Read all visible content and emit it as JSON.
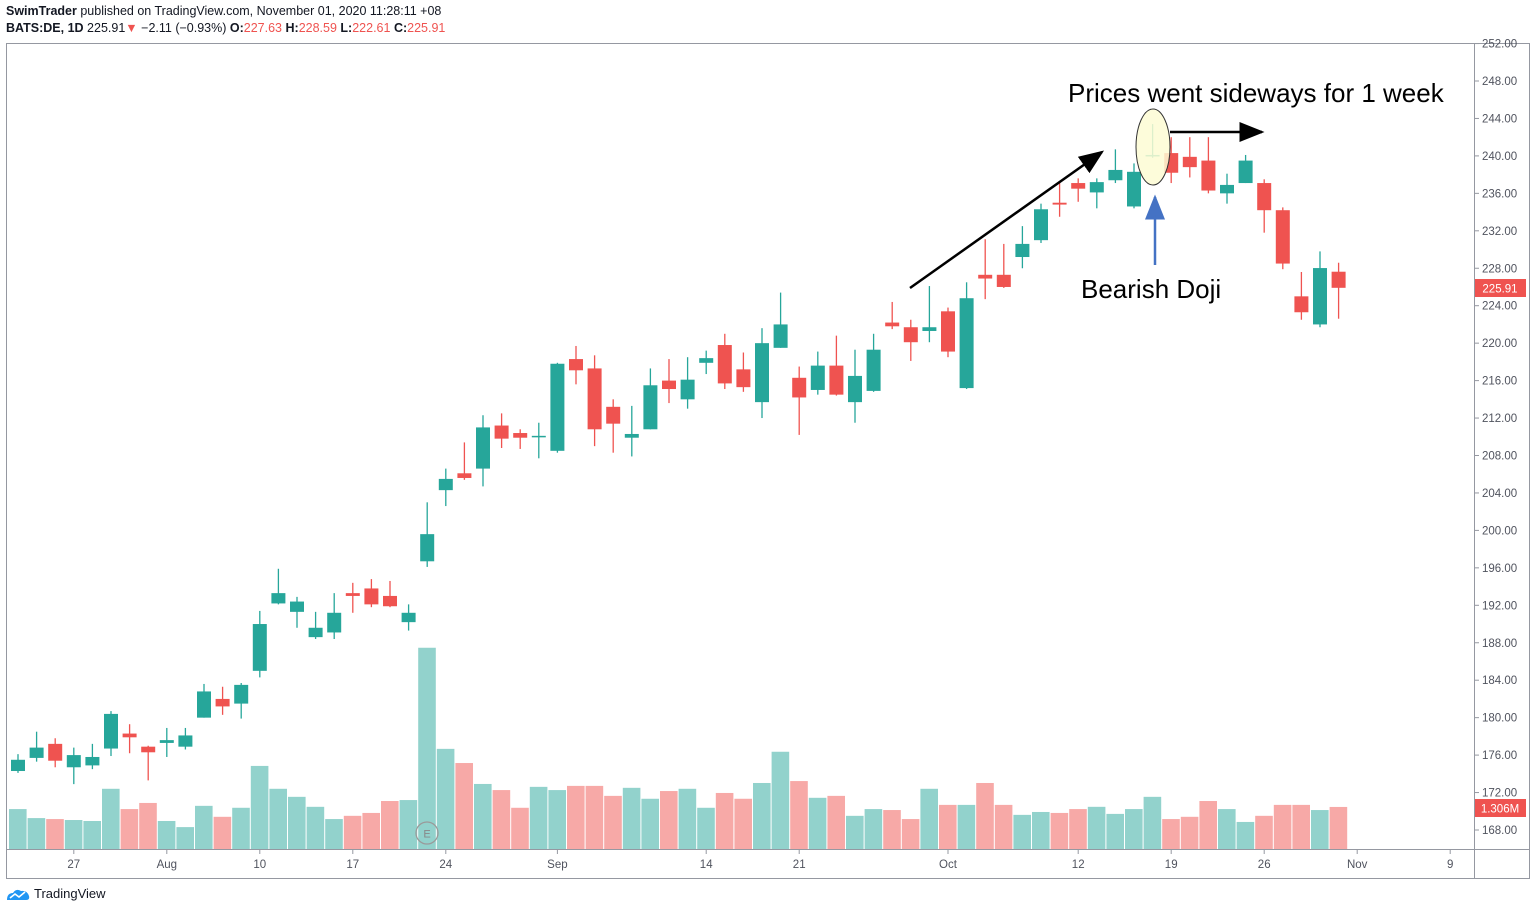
{
  "header": {
    "publisher": "SwimTrader",
    "published_text": "published on TradingView.com, November 01, 2020 11:28:11 +08",
    "symbol": "BATS:DE, 1D",
    "last": "225.91",
    "change": "−2.11 (−0.93%)",
    "o_label": "O:",
    "o": "227.63",
    "h_label": "H:",
    "h": "228.59",
    "l_label": "L:",
    "l": "222.61",
    "c_label": "C:",
    "c": "225.91"
  },
  "footer": {
    "brand": "TradingView"
  },
  "colors": {
    "up": "#26a69a",
    "down": "#ef5350",
    "up_volume": "#92d2cc",
    "down_volume": "#f7a9a7",
    "annotation_fill": "#fdfbd3",
    "annotation_arrow": "#4472c4"
  },
  "chart_data": {
    "type": "candlestick",
    "ylim": [
      166,
      252.5
    ],
    "y_ticks": [
      "252.00",
      "248.00",
      "244.00",
      "240.00",
      "236.00",
      "232.00",
      "228.00",
      "224.00",
      "220.00",
      "216.00",
      "212.00",
      "208.00",
      "204.00",
      "200.00",
      "196.00",
      "192.00",
      "188.00",
      "184.00",
      "180.00",
      "176.00",
      "172.00",
      "168.00"
    ],
    "x_ticks": [
      {
        "label": "27",
        "date": "2020-07-27"
      },
      {
        "label": "Aug",
        "date": "2020-08-03"
      },
      {
        "label": "10",
        "date": "2020-08-10"
      },
      {
        "label": "17",
        "date": "2020-08-17"
      },
      {
        "label": "24",
        "date": "2020-08-24"
      },
      {
        "label": "Sep",
        "date": "2020-09-01"
      },
      {
        "label": "14",
        "date": "2020-09-14"
      },
      {
        "label": "21",
        "date": "2020-09-21"
      },
      {
        "label": "Oct",
        "date": "2020-10-01"
      },
      {
        "label": "12",
        "date": "2020-10-12"
      },
      {
        "label": "19",
        "date": "2020-10-19"
      },
      {
        "label": "26",
        "date": "2020-10-26"
      },
      {
        "label": "Nov",
        "date": "2020-11-02"
      },
      {
        "label": "9",
        "date": "2020-11-09"
      }
    ],
    "last_price_label": "225.91",
    "last_volume_label": "1.306M",
    "earnings_marker": {
      "label": "E",
      "date": "2020-08-21"
    },
    "annotations": {
      "sideways": "Prices went sideways for 1 week",
      "doji": "Bearish Doji"
    },
    "candles": [
      [
        "2020-07-22",
        174.3,
        176.1,
        174.1,
        175.5,
        1.24
      ],
      [
        "2020-07-23",
        175.7,
        178.5,
        175.3,
        176.8,
        0.96
      ],
      [
        "2020-07-24",
        177.2,
        177.8,
        174.7,
        175.4,
        0.93
      ],
      [
        "2020-07-27",
        174.7,
        176.8,
        172.9,
        176.0,
        0.9
      ],
      [
        "2020-07-28",
        174.9,
        177.2,
        174.5,
        175.8,
        0.87
      ],
      [
        "2020-07-29",
        176.7,
        180.7,
        175.9,
        180.4,
        1.87
      ],
      [
        "2020-07-30",
        178.3,
        179.3,
        176.2,
        177.9,
        1.24
      ],
      [
        "2020-07-31",
        176.9,
        177.0,
        173.3,
        176.3,
        1.43
      ],
      [
        "2020-08-03",
        177.3,
        178.9,
        175.8,
        177.6,
        0.87
      ],
      [
        "2020-08-04",
        176.9,
        178.9,
        176.6,
        178.1,
        0.68
      ],
      [
        "2020-08-05",
        180.0,
        183.6,
        180.0,
        182.8,
        1.34
      ],
      [
        "2020-08-06",
        182.0,
        183.3,
        180.3,
        181.2,
        1.0
      ],
      [
        "2020-08-07",
        181.5,
        183.7,
        179.9,
        183.5,
        1.28
      ],
      [
        "2020-08-10",
        185.0,
        191.4,
        184.3,
        190.0,
        2.58
      ],
      [
        "2020-08-11",
        192.2,
        195.9,
        192.1,
        193.3,
        1.87
      ],
      [
        "2020-08-12",
        191.3,
        192.9,
        189.6,
        192.4,
        1.62
      ],
      [
        "2020-08-13",
        188.6,
        191.3,
        188.4,
        189.6,
        1.31
      ],
      [
        "2020-08-14",
        189.1,
        193.3,
        188.4,
        191.2,
        0.93
      ],
      [
        "2020-08-17",
        193.3,
        194.4,
        191.2,
        193.0,
        1.03
      ],
      [
        "2020-08-18",
        193.8,
        194.8,
        191.8,
        192.1,
        1.12
      ],
      [
        "2020-08-19",
        193.0,
        194.6,
        191.8,
        191.9,
        1.49
      ],
      [
        "2020-08-20",
        190.2,
        192.1,
        189.3,
        191.2,
        1.52
      ],
      [
        "2020-08-21",
        196.7,
        203.0,
        196.1,
        199.6,
        6.25
      ],
      [
        "2020-08-24",
        204.3,
        206.6,
        202.6,
        205.5,
        3.11
      ],
      [
        "2020-08-25",
        206.1,
        209.4,
        205.4,
        205.6,
        2.67
      ],
      [
        "2020-08-26",
        206.6,
        212.3,
        204.7,
        211.0,
        2.02
      ],
      [
        "2020-08-27",
        211.2,
        212.5,
        208.8,
        209.8,
        1.83
      ],
      [
        "2020-08-28",
        210.4,
        210.8,
        208.7,
        209.9,
        1.28
      ],
      [
        "2020-08-31",
        210.0,
        211.5,
        207.7,
        210.1,
        1.93
      ],
      [
        "2020-09-01",
        208.5,
        217.9,
        208.3,
        217.8,
        1.83
      ],
      [
        "2020-09-02",
        218.3,
        219.7,
        215.6,
        217.1,
        1.96
      ],
      [
        "2020-09-03",
        217.3,
        218.7,
        209.0,
        210.8,
        1.96
      ],
      [
        "2020-09-04",
        213.2,
        214.0,
        208.3,
        211.4,
        1.65
      ],
      [
        "2020-09-08",
        209.9,
        213.3,
        207.9,
        210.3,
        1.9
      ],
      [
        "2020-09-09",
        210.8,
        217.3,
        210.8,
        215.5,
        1.56
      ],
      [
        "2020-09-10",
        216.0,
        218.3,
        213.6,
        215.1,
        1.8
      ],
      [
        "2020-09-11",
        214.0,
        218.5,
        213.0,
        216.1,
        1.87
      ],
      [
        "2020-09-14",
        217.9,
        219.2,
        216.7,
        218.4,
        1.28
      ],
      [
        "2020-09-15",
        219.8,
        221.0,
        215.1,
        215.7,
        1.74
      ],
      [
        "2020-09-16",
        217.2,
        219.0,
        214.8,
        215.3,
        1.56
      ],
      [
        "2020-09-17",
        213.7,
        221.6,
        212.0,
        220.0,
        2.05
      ],
      [
        "2020-09-18",
        219.5,
        225.4,
        219.5,
        222.0,
        3.02
      ],
      [
        "2020-09-21",
        216.3,
        217.5,
        210.2,
        214.2,
        2.11
      ],
      [
        "2020-09-22",
        215.0,
        219.1,
        214.5,
        217.6,
        1.59
      ],
      [
        "2020-09-23",
        217.6,
        220.8,
        214.4,
        214.5,
        1.65
      ],
      [
        "2020-09-24",
        213.7,
        219.3,
        211.5,
        216.5,
        1.03
      ],
      [
        "2020-09-25",
        214.9,
        221.0,
        214.8,
        219.3,
        1.24
      ],
      [
        "2020-09-28",
        222.2,
        224.4,
        221.5,
        221.8,
        1.21
      ],
      [
        "2020-09-29",
        221.7,
        222.5,
        218.1,
        220.1,
        0.93
      ],
      [
        "2020-09-30",
        221.3,
        226.1,
        220.1,
        221.7,
        1.87
      ],
      [
        "2020-10-01",
        223.4,
        223.8,
        218.5,
        219.1,
        1.37
      ],
      [
        "2020-10-02",
        215.2,
        226.5,
        215.1,
        224.8,
        1.37
      ],
      [
        "2020-10-05",
        227.3,
        231.1,
        224.7,
        226.9,
        2.05
      ],
      [
        "2020-10-06",
        227.3,
        230.6,
        225.9,
        226.0,
        1.37
      ],
      [
        "2020-10-07",
        229.2,
        232.5,
        228.0,
        230.6,
        1.06
      ],
      [
        "2020-10-08",
        231.0,
        234.9,
        230.7,
        234.3,
        1.15
      ],
      [
        "2020-10-09",
        235.0,
        237.1,
        233.5,
        234.8,
        1.12
      ],
      [
        "2020-10-12",
        237.1,
        237.6,
        235.1,
        236.5,
        1.24
      ],
      [
        "2020-10-13",
        236.1,
        237.6,
        234.4,
        237.2,
        1.31
      ],
      [
        "2020-10-14",
        237.4,
        240.7,
        237.1,
        238.5,
        1.09
      ],
      [
        "2020-10-15",
        234.6,
        239.2,
        234.4,
        238.3,
        1.24
      ],
      [
        "2020-10-16",
        240.0,
        243.4,
        239.8,
        240.1,
        1.62
      ],
      [
        "2020-10-19",
        240.3,
        242.0,
        237.1,
        238.2,
        0.93
      ],
      [
        "2020-10-20",
        239.9,
        242.0,
        237.7,
        238.8,
        1.0
      ],
      [
        "2020-10-21",
        239.5,
        242.0,
        236.0,
        236.3,
        1.49
      ],
      [
        "2020-10-22",
        236.0,
        238.1,
        234.9,
        236.9,
        1.24
      ],
      [
        "2020-10-23",
        237.1,
        240.1,
        237.1,
        239.5,
        0.84
      ],
      [
        "2020-10-26",
        237.1,
        237.5,
        231.8,
        234.2,
        1.03
      ],
      [
        "2020-10-27",
        234.2,
        234.5,
        227.9,
        228.5,
        1.37
      ],
      [
        "2020-10-28",
        225.0,
        227.6,
        222.5,
        223.3,
        1.37
      ],
      [
        "2020-10-29",
        222.0,
        229.8,
        221.7,
        228.02,
        1.21
      ],
      [
        "2020-10-30",
        227.63,
        228.59,
        222.61,
        225.91,
        1.306
      ]
    ],
    "candle_fields": [
      "date",
      "open",
      "high",
      "low",
      "close",
      "volume_millions"
    ]
  }
}
